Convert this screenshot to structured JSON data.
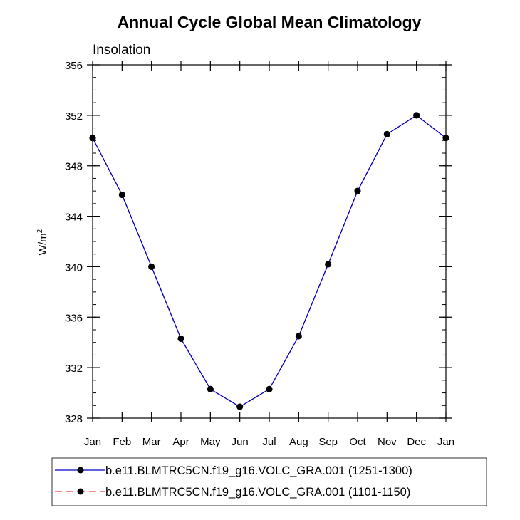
{
  "chart_data": {
    "type": "line",
    "title": "Annual Cycle Global Mean Climatology",
    "subtitle": "Insolation",
    "xlabel": "",
    "ylabel": "W/m",
    "ylabel_superscript": "2",
    "categories": [
      "Jan",
      "Feb",
      "Mar",
      "Apr",
      "May",
      "Jun",
      "Jul",
      "Aug",
      "Sep",
      "Oct",
      "Nov",
      "Dec",
      "Jan"
    ],
    "ylim": [
      328,
      356
    ],
    "yticks": [
      "328",
      "332",
      "336",
      "340",
      "344",
      "348",
      "352",
      "356"
    ],
    "ytick_values": [
      328,
      332,
      336,
      340,
      344,
      348,
      352,
      356
    ],
    "y_minor_step": 1,
    "series": [
      {
        "name": "b.e11.BLMTRC5CN.f19_g16.VOLC_GRA.001 (1251-1300)",
        "color": "#0000cc",
        "dash": "solid",
        "marker_color": "#000000",
        "values": [
          350.2,
          345.7,
          340.0,
          334.3,
          330.3,
          328.9,
          330.3,
          334.5,
          340.2,
          346.0,
          350.5,
          352.0,
          350.2
        ]
      },
      {
        "name": "b.e11.BLMTRC5CN.f19_g16.VOLC_GRA.001 (1101-1150)",
        "color": "#ee4444",
        "dash": "dashed",
        "marker_color": "#000000",
        "values": [
          350.2,
          345.7,
          340.0,
          334.3,
          330.3,
          328.9,
          330.3,
          334.5,
          340.2,
          346.0,
          350.5,
          352.0,
          350.2
        ]
      }
    ],
    "grid": false,
    "legend_position": "bottom"
  }
}
